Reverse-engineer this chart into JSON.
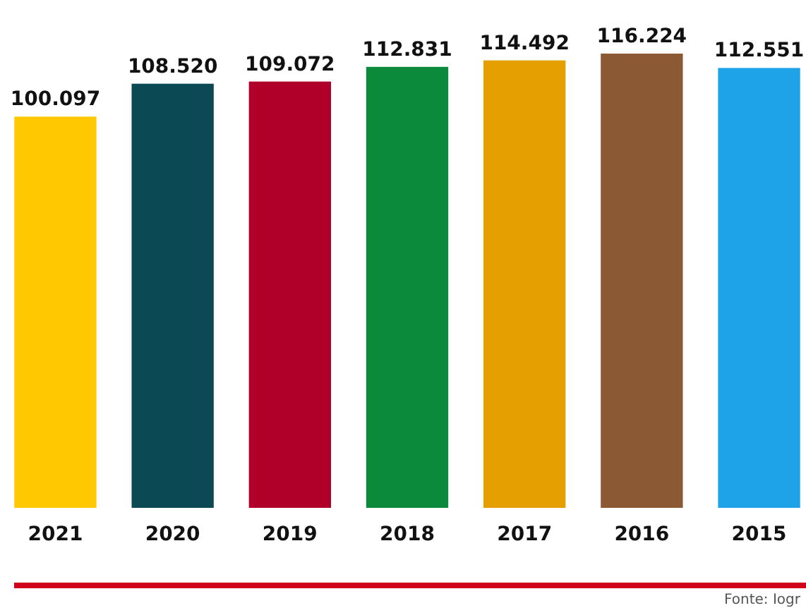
{
  "chart_data": {
    "type": "bar",
    "categories": [
      "2021",
      "2020",
      "2019",
      "2018",
      "2017",
      "2016",
      "2015"
    ],
    "values": [
      100.097,
      108.52,
      109.072,
      112.831,
      114.492,
      116.224,
      112.551
    ],
    "value_labels": [
      "100.097",
      "108.520",
      "109.072",
      "112.831",
      "114.492",
      "116.224",
      "112.551"
    ],
    "colors": [
      "#ffc800",
      "#0b4a55",
      "#b0002a",
      "#0a8a3a",
      "#e5a000",
      "#8b5a35",
      "#1fa3e8"
    ],
    "annotations": [
      "Fonte: Iogr"
    ]
  }
}
